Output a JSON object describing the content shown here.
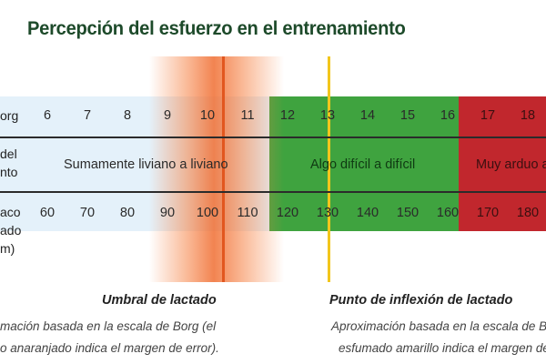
{
  "title": "Percepción del esfuerzo en el entrenamiento",
  "row_labels": {
    "borg": "org",
    "perception_line1": "del",
    "perception_line2": "nto",
    "hr_line1": "aco",
    "hr_line2": "ado",
    "hr_line3": "m)"
  },
  "borg_values": [
    "6",
    "7",
    "8",
    "9",
    "10",
    "11",
    "12",
    "13",
    "14",
    "15",
    "16",
    "17",
    "18"
  ],
  "hr_values": [
    "60",
    "70",
    "80",
    "90",
    "100",
    "110",
    "120",
    "130",
    "140",
    "150",
    "160",
    "170",
    "180"
  ],
  "zones": {
    "light": "Sumamente liviano a liviano",
    "green": "Algo difícil a difícil",
    "red": "Muy arduo a"
  },
  "captions": {
    "lactate_threshold": {
      "heading": "Umbral de lactado",
      "line1": "mación basada en la escala de Borg (el",
      "line2": "o anaranjado indica el margen de error)."
    },
    "lactate_inflection": {
      "heading": "Punto de inflexión de lactado",
      "line1": "Aproximación basada en la escala de Bo",
      "line2": "esfumado amarillo indica el margen de"
    }
  },
  "colors": {
    "light_zone": "#e4f1fa",
    "green_zone": "#3fa33f",
    "red_zone": "#c1272d",
    "threshold_orange": "#e2571f",
    "inflection_yellow": "#f2c61c",
    "title": "#1d4a2a"
  }
}
